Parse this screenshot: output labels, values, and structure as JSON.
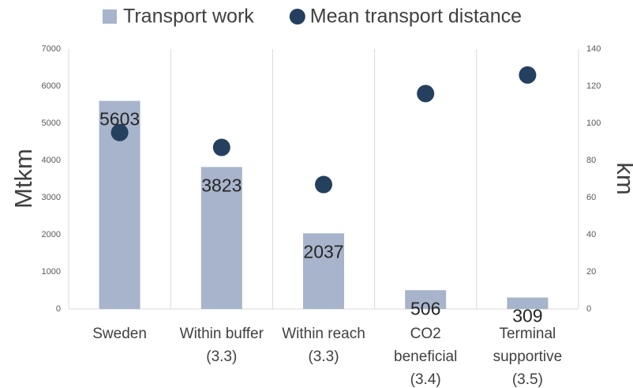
{
  "chart_data": {
    "type": "bar",
    "categories": [
      [
        "Sweden"
      ],
      [
        "Within buffer",
        "(3.3)"
      ],
      [
        "Within reach",
        "(3.3)"
      ],
      [
        "CO2",
        "beneficial",
        "(3.4)"
      ],
      [
        "Terminal",
        "supportive",
        "(3.5)"
      ]
    ],
    "series": [
      {
        "name": "Transport work",
        "type": "bar",
        "color": "#a7b4cb",
        "values": [
          5603,
          3823,
          2037,
          506,
          309
        ]
      },
      {
        "name": "Mean transport distance",
        "type": "scatter",
        "axis": "y2",
        "color": "#253f5e",
        "values": [
          95,
          87,
          67,
          116,
          126
        ]
      }
    ],
    "ylabel": "Mtkm",
    "y2label": "km",
    "ylim": [
      0,
      7000
    ],
    "yticks": [
      0,
      1000,
      2000,
      3000,
      4000,
      5000,
      6000,
      7000
    ],
    "y2lim": [
      0,
      140
    ],
    "y2ticks": [
      0,
      20,
      40,
      60,
      80,
      100,
      120,
      140
    ],
    "grid": true,
    "legend": "top"
  }
}
